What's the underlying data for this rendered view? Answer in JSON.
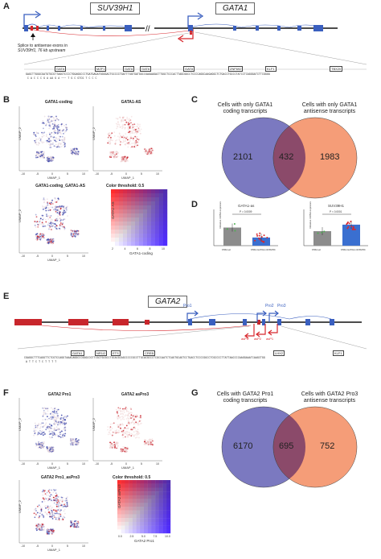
{
  "panels": {
    "A": {
      "label": "A",
      "gene1": "SUV39H1",
      "gene2": "GATA1",
      "note_line1": "Splice to antisense exons in",
      "note_line2": "SUV39H1, 76 kb upstream",
      "tfs": [
        "GATA",
        "MZF1",
        "GATA",
        "GATA",
        "GATA",
        "ZNF692",
        "KLF1",
        "TBX20"
      ],
      "seq": "GAGCTTGGGCGATGTGCGTTAGGTCCCCTGGAGGCCCTGATGAGATGGGGACTGCCCCTGATTTGGTGATGGCCGAGAAGACTTGGCTCCCACTTAGCGGCCTCCCCAGGCAAGAGGCTCTGACCTGCCCTATCCTCAGGGATCTTCGGGG",
      "snps": "C  A        C    C C         G        A     AA    G         A ~~~ T G     C  GTCG       T    C  C    C"
    },
    "B": {
      "label": "B",
      "titles": [
        "GATA1-coding",
        "GATA1-AS",
        "GATA1-coding_GATA1-AS",
        "Color threshold: 0.5"
      ],
      "xlab": "UMAP_1",
      "ylab": "UMAP_2",
      "hm_xlab": "GATA1-coding",
      "hm_ylab": "GATA1-AS",
      "ticks": [
        "-10",
        "-5",
        "0",
        "5",
        "10"
      ],
      "hm_ticks": [
        "2",
        "4",
        "6",
        "8",
        "10"
      ]
    },
    "C": {
      "label": "C",
      "left_line1": "Cells with only GATA1",
      "left_line2": "coding transcripts",
      "right_line1": "Cells with only GATA1",
      "right_line2": "antisense transcripts",
      "left": "2101",
      "mid": "432",
      "right": "1983"
    },
    "D": {
      "label": "D",
      "title1": "GATA1-as",
      "title2": "SUV39H1",
      "p1": "P = 0.0009",
      "p2": "P < 0.0001",
      "ylab": "Relative mRNA expression",
      "cat1": "K562-wt",
      "cat2": "K562-GATA1-CRISPRi",
      "chart_data": [
        {
          "type": "bar",
          "title": "GATA1-as",
          "categories": [
            "K562-wt",
            "K562-GATA1-CRISPRi"
          ],
          "values": [
            1.0,
            0.45
          ],
          "ylim": [
            0,
            2.0
          ],
          "ylabel": "Relative mRNA expression"
        },
        {
          "type": "bar",
          "title": "SUV39H1",
          "categories": [
            "K562-wt",
            "K562-GATA1-CRISPRi"
          ],
          "values": [
            1.0,
            1.45
          ],
          "ylim": [
            0,
            2.5
          ],
          "ylabel": "Relative mRNA expression"
        }
      ]
    },
    "E": {
      "label": "E",
      "gene": "GATA2",
      "pro1": "Pro1",
      "pro2": "Pro2",
      "pro3": "Pro3",
      "as1": "asP1",
      "as2": "asP2",
      "as3": "asP3",
      "tfs": [
        "GATA1",
        "NR1I2",
        "ETS",
        "CREB",
        "LHX2",
        "KLF1"
      ],
      "seq": "CGAGGCTTTCAGGTTCTCGTCCAGGTAAACAGGCCCGGGCCGTTCGCTGCGCCTGCACGCAGCCCCCGCCTTGCACGCCCTCGCCAATCTCAGTGCAGTCCTGACCTCCCCGGCCTCGCCCCTTATTAACCCCAAGGAAATCAAGCTGG",
      "snps": "A   T           T    C      T                                                            C        T         T    T  T"
    },
    "F": {
      "label": "F",
      "titles": [
        "GATA2 Pro1",
        "GATA2 asPro3",
        "GATA2 Pro1_asPro3",
        "Color threshold: 0.5"
      ],
      "xlab": "UMAP_1",
      "ylab": "UMAP_2",
      "hm_xlab": "GATA2 Pro1",
      "hm_ylab": "GATA2 asPro3",
      "ticks": [
        "-10",
        "-5",
        "0",
        "5",
        "10"
      ],
      "hm_ticks": [
        "0.0",
        "2.5",
        "5.0",
        "7.5",
        "10.0"
      ]
    },
    "G": {
      "label": "G",
      "left_line1": "Cells with GATA2 Pro1",
      "left_line2": "coding transcripts",
      "right_line1": "Cells with GATA2 Pro3",
      "right_line2": "antisense transcripts",
      "left": "6170",
      "mid": "695",
      "right": "752"
    }
  },
  "colors": {
    "blue": "#3a5fbf",
    "red": "#d8272d",
    "venn_left": "#7b79c0",
    "venn_right": "#f59d78",
    "venn_mid": "#8b4a6a"
  }
}
